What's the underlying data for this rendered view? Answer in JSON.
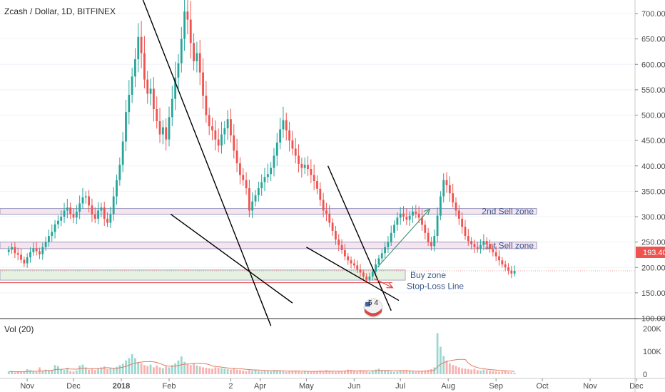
{
  "header": {
    "title": "Zcash / Dollar, 1D, BITFINEX"
  },
  "volume_pane": {
    "label": "Vol (20)"
  },
  "price_badge": {
    "value": "193.40",
    "color": "#ef5350"
  },
  "badge_icon": {
    "text": "5 4",
    "icon": "flag-badge-icon"
  },
  "colors": {
    "up": "#26a69a",
    "down": "#ef5350",
    "zone_sell": "#d9b3cc",
    "zone_buy": "#c9dcc0",
    "trend": "#000000",
    "projection": "#4a9a7a",
    "stop": "#e84040"
  },
  "chart_data": {
    "type": "candlestick",
    "symbol": "Zcash / Dollar",
    "interval": "1D",
    "exchange": "BITFINEX",
    "price_axis": {
      "ticks": [
        "700.00",
        "650.00",
        "600.00",
        "550.00",
        "500.00",
        "450.00",
        "400.00",
        "350.00",
        "300.00",
        "250.00",
        "200.00",
        "150.00",
        "100.00"
      ],
      "range": [
        52,
        725
      ]
    },
    "volume_axis": {
      "ticks": [
        "200K",
        "100K",
        "0"
      ],
      "range": [
        0,
        240
      ]
    },
    "time_axis": {
      "labels": [
        "Nov",
        "Dec",
        "2018",
        "Feb",
        "2",
        "Apr",
        "May",
        "Jun",
        "Jul",
        "Aug",
        "Sep",
        "Oct",
        "Nov",
        "Dec"
      ]
    },
    "zones": [
      {
        "label": "2nd Sell zone",
        "low": 305,
        "high": 316
      },
      {
        "label": "1st Sell zone",
        "low": 237,
        "high": 250
      },
      {
        "label": "Buy zone",
        "low": 175,
        "high": 195
      },
      {
        "label": "Stop-Loss Line",
        "level": 170
      }
    ],
    "last_price": 193.4,
    "closes": [
      235,
      240,
      228,
      225,
      215,
      208,
      220,
      230,
      238,
      232,
      226,
      240,
      250,
      262,
      270,
      285,
      292,
      300,
      312,
      318,
      305,
      298,
      310,
      326,
      338,
      340,
      322,
      304,
      296,
      312,
      318,
      296,
      288,
      305,
      340,
      372,
      402,
      448,
      506,
      540,
      576,
      610,
      654,
      622,
      570,
      542,
      552,
      512,
      488,
      462,
      476,
      452,
      496,
      532,
      574,
      602,
      650,
      704,
      688,
      642,
      606,
      622,
      584,
      538,
      500,
      478,
      470,
      452,
      440,
      462,
      474,
      492,
      460,
      430,
      405,
      382,
      372,
      356,
      312,
      330,
      342,
      356,
      368,
      378,
      384,
      396,
      420,
      446,
      472,
      490,
      470,
      450,
      434,
      420,
      404,
      396,
      402,
      394,
      382,
      370,
      355,
      333,
      312,
      306,
      288,
      272,
      255,
      244,
      234,
      222,
      214,
      208,
      204,
      196,
      190,
      182,
      176,
      182,
      192,
      206,
      218,
      228,
      240,
      250,
      268,
      284,
      298,
      306,
      300,
      294,
      302,
      310,
      306,
      298,
      284,
      268,
      250,
      242,
      262,
      302,
      340,
      372,
      362,
      346,
      328,
      312,
      296,
      280,
      262,
      252,
      246,
      240,
      236,
      244,
      252,
      246,
      236,
      230,
      222,
      214,
      206,
      200,
      194,
      188,
      193.4
    ],
    "volumes_k": [
      10,
      14,
      8,
      12,
      9,
      10,
      22,
      18,
      12,
      10,
      30,
      14,
      20,
      16,
      18,
      40,
      35,
      22,
      18,
      28,
      14,
      12,
      16,
      38,
      42,
      30,
      20,
      24,
      18,
      26,
      30,
      34,
      22,
      28,
      26,
      32,
      40,
      46,
      60,
      70,
      88,
      70,
      52,
      48,
      40,
      36,
      42,
      30,
      38,
      30,
      26,
      34,
      30,
      40,
      48,
      60,
      78,
      54,
      44,
      40,
      46,
      38,
      34,
      30,
      28,
      26,
      24,
      30,
      28,
      26,
      24,
      22,
      20,
      24,
      20,
      18,
      16,
      14,
      18,
      16,
      20,
      14,
      12,
      16,
      14,
      12,
      18,
      16,
      14,
      12,
      10,
      12,
      14,
      16,
      12,
      10,
      14,
      12,
      10,
      12,
      14,
      16,
      12,
      18,
      14,
      12,
      10,
      14,
      12,
      16,
      20,
      18,
      14,
      12,
      18,
      14,
      12,
      10,
      16,
      20,
      24,
      18,
      16,
      14,
      12,
      10,
      12,
      14,
      16,
      18,
      14,
      12,
      10,
      12,
      14,
      16,
      18,
      22,
      30,
      180,
      120,
      80,
      60,
      48,
      40,
      36,
      30,
      26,
      24,
      22,
      20,
      24,
      18,
      16,
      20,
      18,
      16,
      14,
      12,
      10,
      12,
      14,
      10,
      8,
      6
    ],
    "trendlines": [
      {
        "from": [
          "2018-Jan-14",
          735
        ],
        "to": [
          "2018-Apr-08",
          85
        ]
      },
      {
        "from": [
          "2018-Feb-02",
          305
        ],
        "to": [
          "2018-Apr-22",
          130
        ]
      },
      {
        "from": [
          "2018-May-15",
          400
        ],
        "to": [
          "2018-Jun-25",
          115
        ]
      },
      {
        "from": [
          "2018-May-01",
          240
        ],
        "to": [
          "2018-Jun-30",
          135
        ]
      }
    ],
    "arrows": [
      {
        "label": "projection",
        "from": [
          "2018-Jun-16",
          200
        ],
        "to": [
          "2018-Jul-20",
          315
        ]
      },
      {
        "label": "stop",
        "from": [
          "2018-Jun-14",
          178
        ],
        "to": [
          "2018-Jun-26",
          160
        ]
      }
    ]
  }
}
